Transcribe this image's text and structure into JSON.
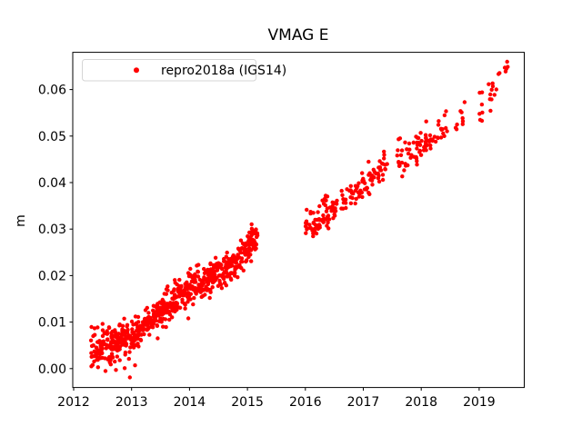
{
  "window": {
    "title": "VMAG E"
  },
  "chart_data": {
    "type": "scatter",
    "title": "VMAG E",
    "xlabel": "",
    "ylabel": "m",
    "grid": false,
    "legend": {
      "label": "repro2018a (IGS14)",
      "position": "upper left",
      "marker": "dot",
      "marker_color": "#ff0000"
    },
    "xlim": [
      2011.98,
      2019.79
    ],
    "ylim": [
      -0.0043,
      0.0679
    ],
    "x_ticks": [
      2012,
      2013,
      2014,
      2015,
      2016,
      2017,
      2018,
      2019
    ],
    "x_tick_labels": [
      "2012",
      "2013",
      "2014",
      "2015",
      "2016",
      "2017",
      "2018",
      "2019"
    ],
    "y_ticks": [
      0.0,
      0.01,
      0.02,
      0.03,
      0.04,
      0.05,
      0.06
    ],
    "y_tick_labels": [
      "0.00",
      "0.01",
      "0.02",
      "0.03",
      "0.04",
      "0.05",
      "0.06"
    ],
    "series": [
      {
        "name": "repro2018a (IGS14)",
        "color": "#ff0000",
        "marker": "dot",
        "marker_radius_px": 2.2,
        "seed": 7,
        "trend_segments": [
          {
            "t0": 2012.3,
            "t1": 2012.95,
            "n": 170,
            "v0": 0.0045,
            "v1": 0.0062,
            "noise": 0.0019
          },
          {
            "t0": 2012.95,
            "t1": 2014.0,
            "n": 270,
            "v0": 0.0063,
            "v1": 0.0175,
            "noise": 0.0017
          },
          {
            "t0": 2014.0,
            "t1": 2014.6,
            "n": 150,
            "v0": 0.0175,
            "v1": 0.0206,
            "noise": 0.0016
          },
          {
            "t0": 2014.6,
            "t1": 2015.18,
            "n": 145,
            "v0": 0.0206,
            "v1": 0.0282,
            "noise": 0.0017
          },
          {
            "t0": 2016.0,
            "t1": 2016.55,
            "n": 75,
            "v0": 0.0302,
            "v1": 0.0353,
            "noise": 0.0015
          },
          {
            "t0": 2016.62,
            "t1": 2017.45,
            "n": 82,
            "v0": 0.0356,
            "v1": 0.0442,
            "noise": 0.0016
          },
          {
            "t0": 2017.55,
            "t1": 2018.45,
            "n": 82,
            "v0": 0.0446,
            "v1": 0.0518,
            "noise": 0.0017
          },
          {
            "t0": 2018.55,
            "t1": 2018.8,
            "n": 9,
            "v0": 0.0515,
            "v1": 0.056,
            "noise": 0.0015
          },
          {
            "t0": 2019.0,
            "t1": 2019.3,
            "n": 17,
            "v0": 0.0555,
            "v1": 0.061,
            "noise": 0.002
          },
          {
            "t0": 2019.33,
            "t1": 2019.5,
            "n": 7,
            "v0": 0.0632,
            "v1": 0.0645,
            "noise": 0.0008
          }
        ],
        "outlier_points": [
          [
            2012.42,
            0.0003
          ],
          [
            2012.55,
            -0.0005
          ],
          [
            2012.64,
            0.0009
          ],
          [
            2012.73,
            -0.0003
          ],
          [
            2012.88,
            0.0001
          ],
          [
            2012.97,
            -0.0019
          ],
          [
            2013.06,
            0.0007
          ],
          [
            2013.45,
            0.0065
          ],
          [
            2012.5,
            0.0096
          ],
          [
            2013.98,
            0.0108
          ],
          [
            2014.35,
            0.0152
          ]
        ]
      }
    ],
    "colors": {
      "points": "#ff0000",
      "spines": "#000000",
      "legend_border": "#d5d5d5",
      "background": "#ffffff"
    }
  }
}
